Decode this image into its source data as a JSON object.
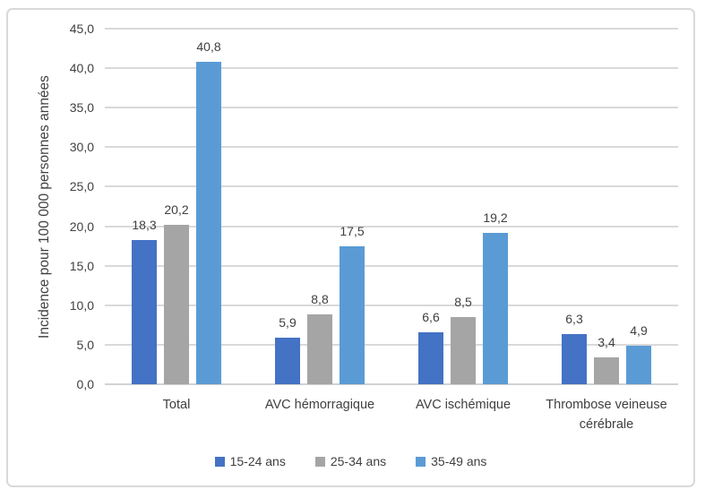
{
  "figure": {
    "background": "#FFFFFF",
    "border_color": "#D9D9D9"
  },
  "chart_data": {
    "type": "bar",
    "title": "",
    "xlabel": "",
    "ylabel": "Incidence pour 100 000 personnes années",
    "categories": [
      "Total",
      "AVC hémorragique",
      "AVC ischémique",
      "Thrombose veineuse cérébrale"
    ],
    "series": [
      {
        "name": "15-24 ans",
        "color": "#4472C4",
        "values": [
          18.3,
          5.9,
          6.6,
          6.3
        ],
        "labels": [
          "18,3",
          "5,9",
          "6,6",
          "6,3"
        ]
      },
      {
        "name": "25-34 ans",
        "color": "#A5A5A5",
        "values": [
          20.2,
          8.8,
          8.5,
          3.4
        ],
        "labels": [
          "20,2",
          "8,8",
          "8,5",
          "3,4"
        ]
      },
      {
        "name": "35-49 ans",
        "color": "#5B9BD5",
        "values": [
          40.8,
          17.5,
          19.2,
          4.9
        ],
        "labels": [
          "40,8",
          "17,5",
          "19,2",
          "4,9"
        ]
      }
    ],
    "y_axis": {
      "min": 0,
      "max": 45,
      "step": 5,
      "tick_labels": [
        "0,0",
        "5,0",
        "10,0",
        "15,0",
        "20,0",
        "25,0",
        "30,0",
        "35,0",
        "40,0",
        "45,0"
      ]
    },
    "grid": true,
    "gridline_color": "#D9D9D9",
    "text_color": "#404040",
    "legend_position": "bottom"
  }
}
